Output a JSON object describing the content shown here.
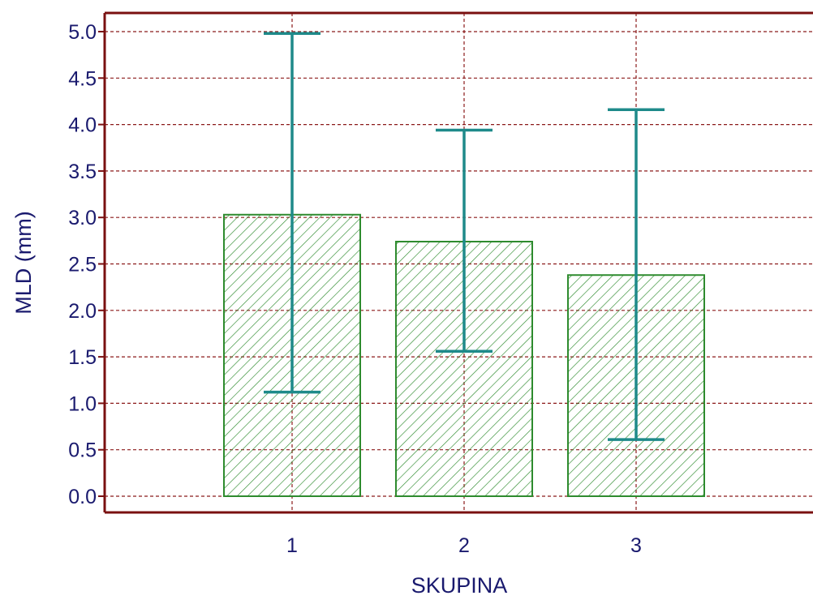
{
  "chart_data": {
    "type": "bar",
    "categories": [
      "1",
      "2",
      "3"
    ],
    "values": [
      3.03,
      2.74,
      2.38
    ],
    "error_bars": [
      {
        "low": 1.12,
        "high": 4.98
      },
      {
        "low": 1.56,
        "high": 3.94
      },
      {
        "low": 0.61,
        "high": 4.16
      }
    ],
    "xlabel": "SKUPINA",
    "ylabel": "MLD (mm)",
    "ylim": [
      0.0,
      5.0
    ],
    "yticks": [
      "0.0",
      "0.5",
      "1.0",
      "1.5",
      "2.0",
      "2.5",
      "3.0",
      "3.5",
      "4.0",
      "4.5",
      "5.0"
    ],
    "grid": true,
    "colors": {
      "bar_edge": "#2e8b2e",
      "hatch": "#2e8b2e",
      "error_bar": "#1e8a8a",
      "grid": "#8b1a1a",
      "axis": "#7a1010",
      "tick_text": "#1a1a6e",
      "label_text": "#1a1a6e"
    }
  }
}
